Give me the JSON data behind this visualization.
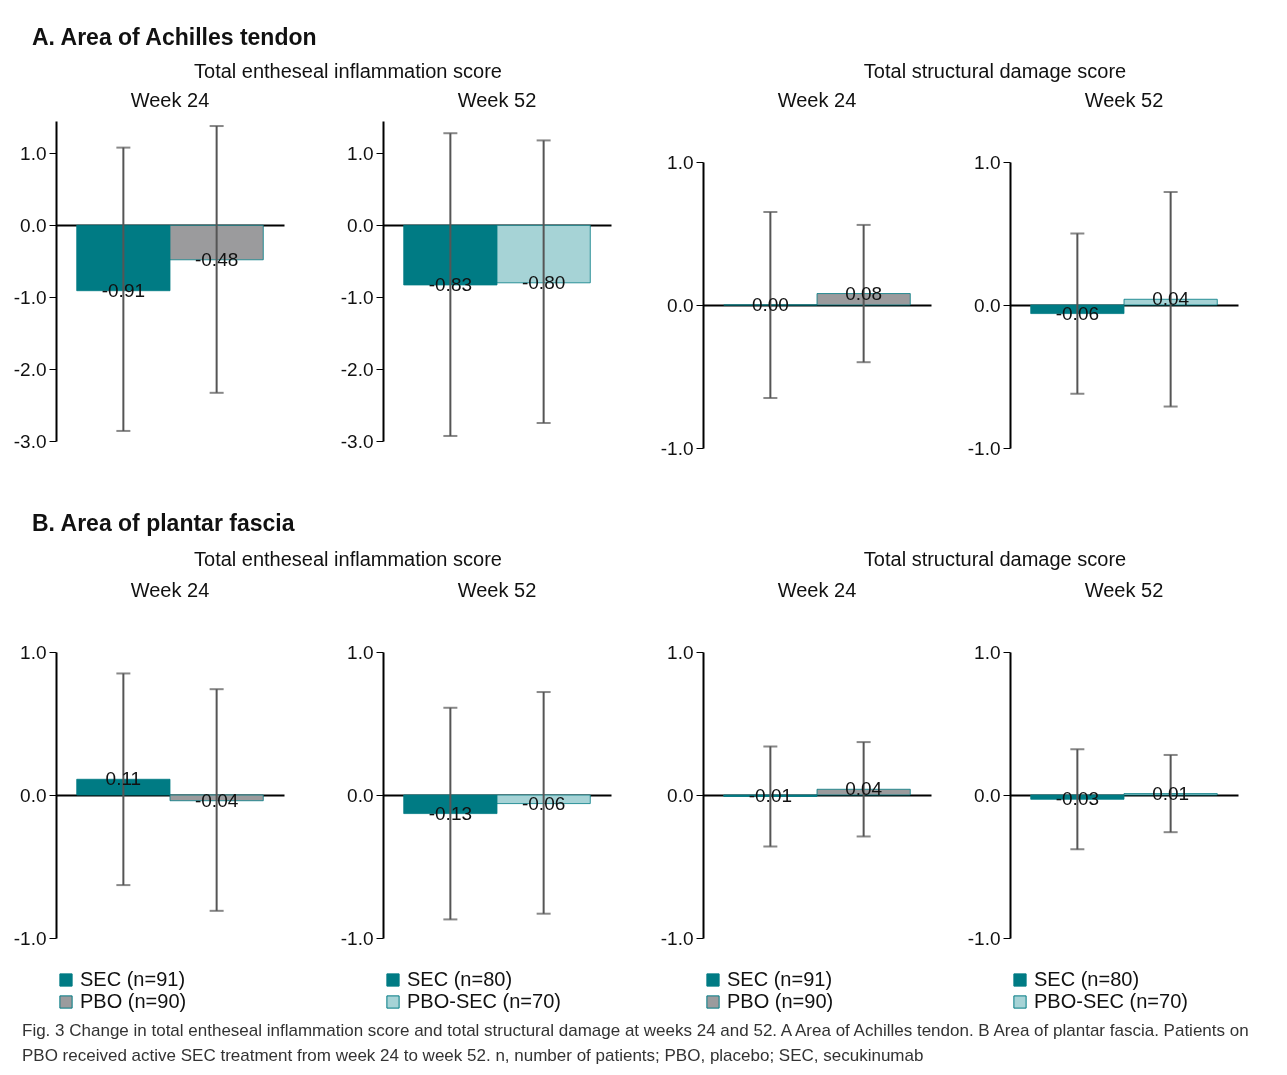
{
  "chart_data": [
    {
      "type": "bar",
      "title": "Week 24",
      "annotations": [
        "A. Area of Achilles tendon",
        "Total entheseal inflammation score"
      ],
      "categories": [
        null
      ],
      "series": [
        {
          "color": "#007b84",
          "values": [
            -0.91
          ],
          "value_labels": [
            "-0.91"
          ],
          "errors": [
            [
              -2.86,
              1.08
            ]
          ]
        },
        {
          "color": "#9b9b9d",
          "values": [
            -0.48
          ],
          "value_labels": [
            "-0.48"
          ],
          "errors": [
            [
              -2.33,
              1.38
            ]
          ]
        }
      ],
      "ylim": [
        -3,
        1.45
      ],
      "yticks": [
        {
          "value": 1,
          "label": "1.0"
        },
        {
          "value": 0,
          "label": "0.0"
        },
        {
          "value": -1,
          "label": "-1.0"
        },
        {
          "value": -2,
          "label": "-2.0"
        },
        {
          "value": -3,
          "label": "-3.0"
        }
      ],
      "tick_labels": "y"
    },
    {
      "type": "bar",
      "title": "Week 52",
      "categories": [
        null
      ],
      "series": [
        {
          "color": "#007b84",
          "values": [
            -0.83
          ],
          "value_labels": [
            "-0.83"
          ],
          "errors": [
            [
              -2.93,
              1.28
            ]
          ]
        },
        {
          "color": "#a6d3d6",
          "values": [
            -0.8
          ],
          "value_labels": [
            "-0.80"
          ],
          "errors": [
            [
              -2.75,
              1.18
            ]
          ]
        }
      ],
      "ylim": [
        -3,
        1.45
      ],
      "yticks": [
        {
          "value": 1,
          "label": "1.0"
        },
        {
          "value": 0,
          "label": "0.0"
        },
        {
          "value": -1,
          "label": "-1.0"
        },
        {
          "value": -2,
          "label": "-2.0"
        },
        {
          "value": -3,
          "label": "-3.0"
        }
      ],
      "tick_labels": "y"
    },
    {
      "type": "bar",
      "title": "Week 24",
      "annotations": [
        "Total structural damage score"
      ],
      "categories": [
        null
      ],
      "series": [
        {
          "color": "#007b84",
          "values": [
            0.0
          ],
          "value_labels": [
            "0.00"
          ],
          "errors": [
            [
              -0.65,
              0.65
            ]
          ]
        },
        {
          "color": "#9b9b9d",
          "values": [
            0.08
          ],
          "value_labels": [
            "0.08"
          ],
          "errors": [
            [
              -0.4,
              0.56
            ]
          ]
        }
      ],
      "ylim": [
        -1,
        1
      ],
      "yticks": [
        {
          "value": 1,
          "label": "1.0"
        },
        {
          "value": 0,
          "label": "0.0"
        },
        {
          "value": -1,
          "label": "-1.0"
        }
      ],
      "tick_labels": "y"
    },
    {
      "type": "bar",
      "title": "Week 52",
      "categories": [
        null
      ],
      "series": [
        {
          "color": "#007b84",
          "values": [
            -0.06
          ],
          "value_labels": [
            "-0.06"
          ],
          "errors": [
            [
              -0.62,
              0.5
            ]
          ]
        },
        {
          "color": "#a6d3d6",
          "values": [
            0.04
          ],
          "value_labels": [
            "0.04"
          ],
          "errors": [
            [
              -0.71,
              0.79
            ]
          ]
        }
      ],
      "ylim": [
        -1,
        1
      ],
      "yticks": [
        {
          "value": 1,
          "label": "1.0"
        },
        {
          "value": 0,
          "label": "0.0"
        },
        {
          "value": -1,
          "label": "-1.0"
        }
      ],
      "tick_labels": "y"
    },
    {
      "type": "bar",
      "title": "Week 24",
      "annotations": [
        "B. Area of plantar fascia",
        "Total entheseal inflammation score"
      ],
      "categories": [
        null
      ],
      "series": [
        {
          "name": "SEC (n=91)",
          "color": "#007b84",
          "values": [
            0.11
          ],
          "value_labels": [
            "0.11"
          ],
          "errors": [
            [
              -0.63,
              0.85
            ]
          ]
        },
        {
          "name": "PBO (n=90)",
          "color": "#9b9b9d",
          "values": [
            -0.04
          ],
          "value_labels": [
            "-0.04"
          ],
          "errors": [
            [
              -0.81,
              0.74
            ]
          ]
        }
      ],
      "ylim": [
        -1,
        1
      ],
      "yticks": [
        {
          "value": 1,
          "label": "1.0"
        },
        {
          "value": 0,
          "label": "0.0"
        },
        {
          "value": -1,
          "label": "-1.0"
        }
      ],
      "legend": "bottom",
      "tick_labels": "y"
    },
    {
      "type": "bar",
      "title": "Week 52",
      "categories": [
        null
      ],
      "series": [
        {
          "name": "SEC (n=80)",
          "color": "#007b84",
          "values": [
            -0.13
          ],
          "value_labels": [
            "-0.13"
          ],
          "errors": [
            [
              -0.87,
              0.61
            ]
          ]
        },
        {
          "name": "PBO-SEC (n=70)",
          "color": "#a6d3d6",
          "values": [
            -0.06
          ],
          "value_labels": [
            "-0.06"
          ],
          "errors": [
            [
              -0.83,
              0.72
            ]
          ]
        }
      ],
      "ylim": [
        -1,
        1
      ],
      "yticks": [
        {
          "value": 1,
          "label": "1.0"
        },
        {
          "value": 0,
          "label": "0.0"
        },
        {
          "value": -1,
          "label": "-1.0"
        }
      ],
      "legend": "bottom",
      "tick_labels": "y"
    },
    {
      "type": "bar",
      "title": "Week 24",
      "annotations": [
        "Total structural damage score"
      ],
      "categories": [
        null
      ],
      "series": [
        {
          "name": "SEC (n=91)",
          "color": "#007b84",
          "values": [
            -0.01
          ],
          "value_labels": [
            "-0.01"
          ],
          "errors": [
            [
              -0.36,
              0.34
            ]
          ]
        },
        {
          "name": "PBO (n=90)",
          "color": "#9b9b9d",
          "values": [
            0.04
          ],
          "value_labels": [
            "0.04"
          ],
          "errors": [
            [
              -0.29,
              0.37
            ]
          ]
        }
      ],
      "ylim": [
        -1,
        1
      ],
      "yticks": [
        {
          "value": 1,
          "label": "1.0"
        },
        {
          "value": 0,
          "label": "0.0"
        },
        {
          "value": -1,
          "label": "-1.0"
        }
      ],
      "legend": "bottom",
      "tick_labels": "y"
    },
    {
      "type": "bar",
      "title": "Week 52",
      "annotations": [
        "Fig. 3  Change in total entheseal inflammation score and total structural damage at weeks 24 and 52. A Area of Achilles tendon. B Area of plantar fascia. Patients on PBO received active SEC treatment from week 24 to week 52. n, number of patients; PBO, placebo; SEC, secukinumab"
      ],
      "categories": [
        null
      ],
      "series": [
        {
          "name": "SEC (n=80)",
          "color": "#007b84",
          "values": [
            -0.03
          ],
          "value_labels": [
            "-0.03"
          ],
          "errors": [
            [
              -0.38,
              0.32
            ]
          ]
        },
        {
          "name": "PBO-SEC (n=70)",
          "color": "#a6d3d6",
          "values": [
            0.01
          ],
          "value_labels": [
            "0.01"
          ],
          "errors": [
            [
              -0.26,
              0.28
            ]
          ]
        }
      ],
      "ylim": [
        -1,
        1
      ],
      "yticks": [
        {
          "value": 1,
          "label": "1.0"
        },
        {
          "value": 0,
          "label": "0.0"
        },
        {
          "value": -1,
          "label": "-1.0"
        }
      ],
      "legend": "bottom",
      "tick_labels": "y"
    }
  ]
}
